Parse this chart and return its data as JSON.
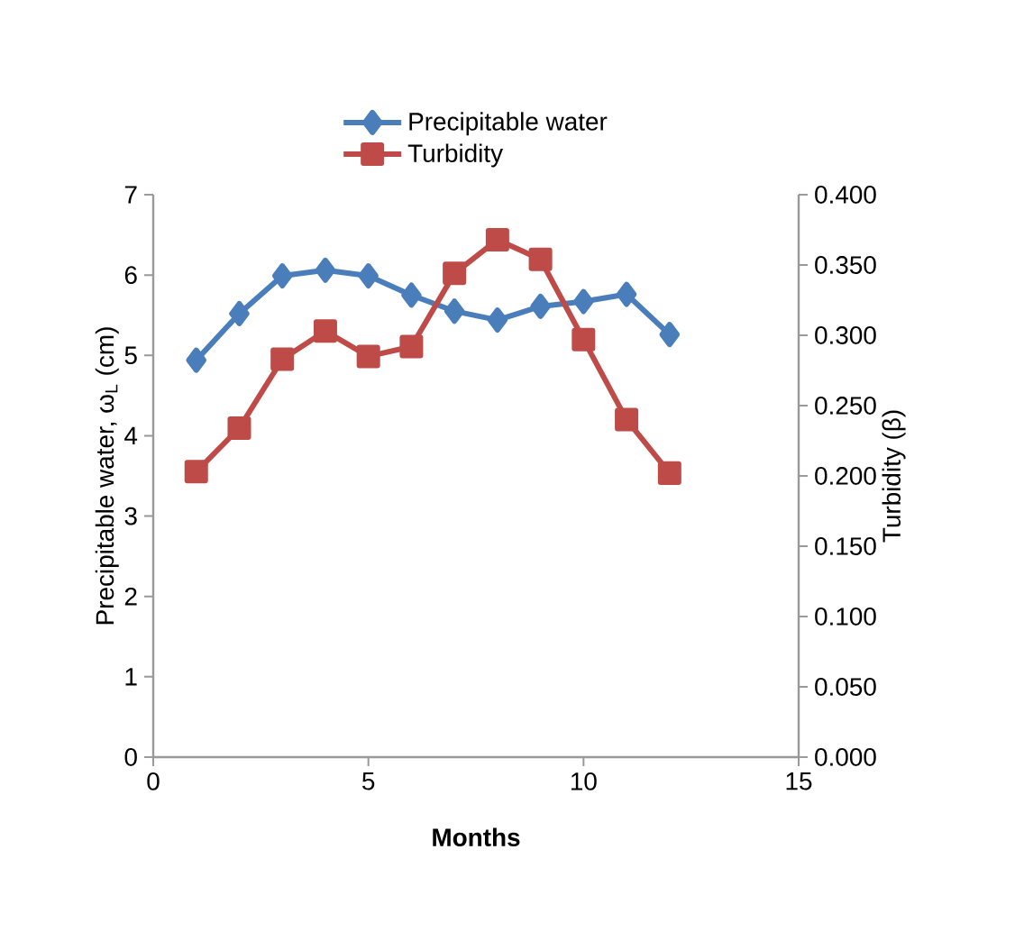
{
  "chart_data": {
    "type": "line",
    "xlabel": "Months",
    "ylabel": "Precipitable water, ω$_{L}$ (cm)",
    "y2label": "Turbidity  (β)",
    "x": [
      1,
      2,
      3,
      4,
      5,
      6,
      7,
      8,
      9,
      10,
      11,
      12
    ],
    "series": [
      {
        "name": "Precipitable water",
        "color": "#4a7ebb",
        "marker": "diamond",
        "values": [
          4.94,
          5.52,
          5.99,
          6.06,
          5.99,
          5.75,
          5.55,
          5.44,
          5.61,
          5.67,
          5.76,
          5.26
        ]
      },
      {
        "name": "Turbidity",
        "color": "#be4b48",
        "marker": "square",
        "axis": "y2",
        "values": [
          0.203,
          0.234,
          0.283,
          0.303,
          0.285,
          0.292,
          0.344,
          0.368,
          0.354,
          0.297,
          0.24,
          0.202
        ]
      }
    ],
    "xlim": [
      0,
      15
    ],
    "xticks": [
      0,
      5,
      10,
      15
    ],
    "ylim": [
      0,
      7
    ],
    "yticks": [
      0,
      1,
      2,
      3,
      4,
      5,
      6,
      7
    ],
    "y2lim": [
      0,
      0.4
    ],
    "y2ticks": [
      {
        "value": 0,
        "label": "0.000"
      },
      {
        "value": 0.05,
        "label": "0.050"
      },
      {
        "value": 0.1,
        "label": "0.100"
      },
      {
        "value": 0.15,
        "label": "0.150"
      },
      {
        "value": 0.2,
        "label": "0.200"
      },
      {
        "value": 0.25,
        "label": "0.250"
      },
      {
        "value": 0.3,
        "label": "0.300"
      },
      {
        "value": 0.35,
        "label": "0.350"
      },
      {
        "value": 0.4,
        "label": "0.400"
      }
    ],
    "legend": "top",
    "grid": false,
    "line_style": "solid"
  }
}
